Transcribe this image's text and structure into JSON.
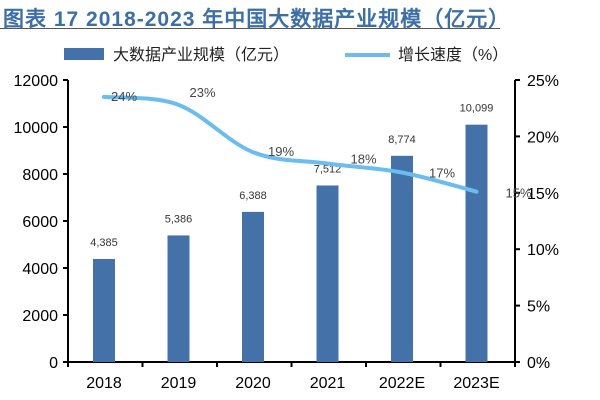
{
  "title": "图表 17 2018-2023 年中国大数据产业规模（亿元）",
  "chart_data": {
    "type": "bar+line",
    "categories": [
      "2018",
      "2019",
      "2020",
      "2021",
      "2022E",
      "2023E"
    ],
    "series": [
      {
        "name": "大数据产业规模（亿元）",
        "type": "bar",
        "axis": "left",
        "color": "#4472a8",
        "values": [
          4385,
          5386,
          6388,
          7512,
          8774,
          10099
        ],
        "labels": [
          "4,385",
          "5,386",
          "6,388",
          "7,512",
          "8,774",
          "10,099"
        ]
      },
      {
        "name": "增长速度（%）",
        "type": "line",
        "axis": "right",
        "color": "#6bbdf0",
        "values": [
          23.5,
          22.8,
          18.6,
          17.6,
          16.8,
          15.1
        ],
        "labels": [
          "24%",
          "23%",
          "19%",
          "18%",
          "17%",
          "15%"
        ]
      }
    ],
    "yleft": {
      "lim": [
        0,
        12000
      ],
      "ticks": [
        "0",
        "2000",
        "4000",
        "6000",
        "8000",
        "10000",
        "12000"
      ]
    },
    "yright": {
      "lim": [
        0,
        25
      ],
      "ticks": [
        "0%",
        "5%",
        "10%",
        "15%",
        "20%",
        "25%"
      ]
    },
    "legend": "top"
  }
}
